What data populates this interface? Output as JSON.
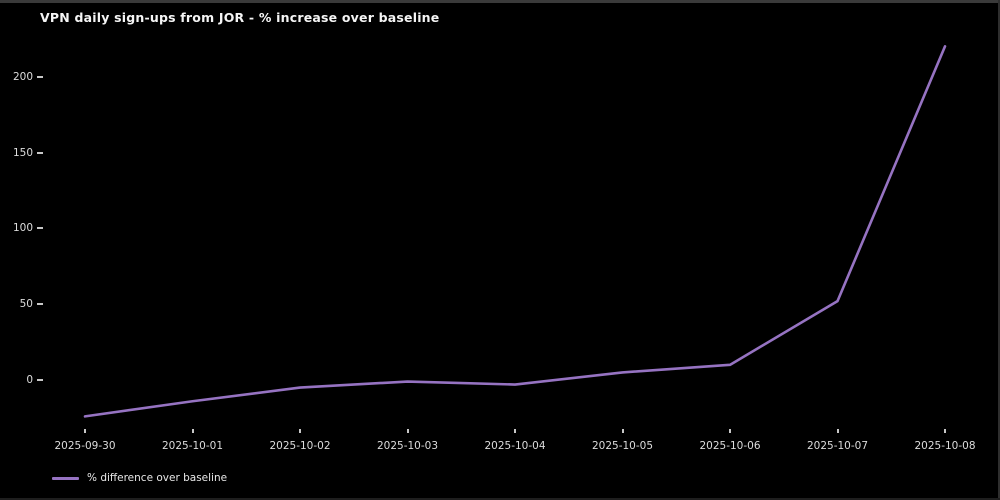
{
  "title": "VPN daily sign-ups from JOR - % increase over baseline",
  "legend": {
    "label": "% difference over baseline"
  },
  "colors": {
    "background": "#000000",
    "line": "#9673c2",
    "tick_text": "#dcdcdc",
    "title_text": "#f5f5f5",
    "window_edge": "#3a3a3a"
  },
  "chart_data": {
    "type": "line",
    "title": "VPN daily sign-ups from JOR - % increase over baseline",
    "xlabel": "",
    "ylabel": "",
    "x": [
      "2025-09-30",
      "2025-10-01",
      "2025-10-02",
      "2025-10-03",
      "2025-10-04",
      "2025-10-05",
      "2025-10-06",
      "2025-10-07",
      "2025-10-08"
    ],
    "series": [
      {
        "name": "% difference over baseline",
        "values": [
          -24,
          -14,
          -5,
          -1,
          -3,
          5,
          10,
          52,
          220
        ],
        "color": "#9673c2"
      }
    ],
    "yticks": [
      0,
      50,
      100,
      150,
      200
    ],
    "ylim": [
      -30,
      230
    ],
    "grid": false,
    "legend_position": "lower left",
    "background": "black"
  }
}
